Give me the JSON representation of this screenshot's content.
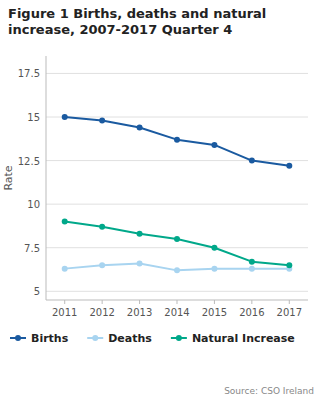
{
  "chart_data": {
    "type": "line",
    "title": "Figure 1 Births, deaths and natural increase, 2007-2017 Quarter 4",
    "y_label": "Rate",
    "annotations": [
      "Source: CSO Ireland"
    ],
    "x": [
      2011,
      2012,
      2013,
      2014,
      2015,
      2016,
      2017
    ],
    "series": [
      {
        "name": "Births",
        "color": "#1a5aa0",
        "values": [
          15.0,
          14.8,
          14.4,
          13.7,
          13.4,
          12.5,
          12.2
        ]
      },
      {
        "name": "Deaths",
        "color": "#a8d4f0",
        "values": [
          6.3,
          6.5,
          6.6,
          6.2,
          6.3,
          6.3,
          6.3
        ]
      },
      {
        "name": "Natural Increase",
        "color": "#00a88a",
        "values": [
          9.0,
          8.7,
          8.3,
          8.0,
          7.5,
          6.7,
          6.5
        ]
      }
    ],
    "xlim": [
      2010.5,
      2017.5
    ],
    "xticks": [
      2011,
      2012,
      2013,
      2014,
      2015,
      2016,
      2017
    ],
    "ylim": [
      4.5,
      18.5
    ],
    "yticks": [
      5,
      7.5,
      10,
      12.5,
      15,
      17.5
    ],
    "grid": true,
    "legend": "bottom",
    "marker": "circle"
  }
}
